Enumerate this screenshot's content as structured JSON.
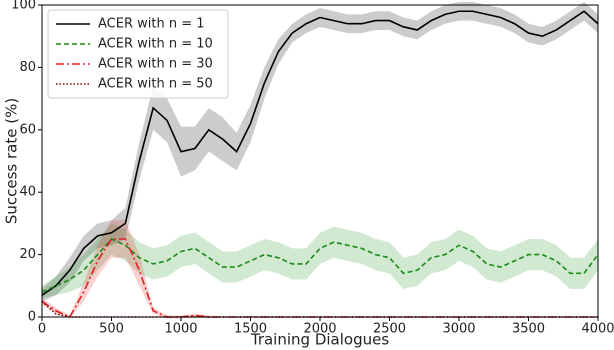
{
  "chart_data": {
    "type": "line",
    "xlabel": "Training Dialogues",
    "ylabel": "Success rate (%)",
    "x": [
      0,
      100,
      200,
      300,
      400,
      500,
      600,
      700,
      800,
      900,
      1000,
      1100,
      1200,
      1300,
      1400,
      1500,
      1600,
      1700,
      1800,
      1900,
      2000,
      2100,
      2200,
      2300,
      2400,
      2500,
      2600,
      2700,
      2800,
      2900,
      3000,
      3100,
      3200,
      3300,
      3400,
      3500,
      3600,
      3700,
      3800,
      3900,
      4000
    ],
    "series": [
      {
        "name": "ACER with n = 1",
        "color": "#000000",
        "dash": "solid",
        "values": [
          7,
          10,
          15,
          22,
          26,
          27,
          30,
          50,
          67,
          63,
          53,
          54,
          60,
          57,
          53,
          62,
          75,
          85,
          91,
          94,
          96,
          95,
          94,
          94,
          95,
          95,
          93,
          92,
          95,
          97,
          98,
          98,
          97,
          96,
          94,
          91,
          90,
          92,
          95,
          98,
          94
        ],
        "errors": [
          2,
          3,
          4,
          4,
          4,
          4,
          5,
          6,
          7,
          7,
          8,
          7,
          7,
          7,
          6,
          6,
          5,
          4,
          3,
          3,
          3,
          3,
          3,
          3,
          3,
          3,
          3,
          3,
          3,
          3,
          3,
          3,
          3,
          3,
          3,
          3,
          3,
          3,
          3,
          3,
          3
        ]
      },
      {
        "name": "ACER with n = 10",
        "color": "#1a8a1a",
        "dash": "dashed",
        "values": [
          8,
          10,
          12,
          15,
          20,
          25,
          23,
          19,
          17,
          18,
          21,
          22,
          19,
          16,
          16,
          18,
          20,
          19,
          17,
          17,
          22,
          24,
          23,
          22,
          20,
          19,
          14,
          15,
          19,
          20,
          23,
          21,
          17,
          16,
          18,
          20,
          20,
          18,
          14,
          14,
          20
        ],
        "errors": [
          2,
          3,
          4,
          5,
          5,
          5,
          5,
          5,
          5,
          5,
          5,
          5,
          5,
          5,
          5,
          5,
          5,
          5,
          5,
          5,
          5,
          5,
          5,
          5,
          5,
          5,
          5,
          5,
          5,
          5,
          5,
          5,
          5,
          5,
          5,
          5,
          5,
          5,
          5,
          5,
          5
        ]
      },
      {
        "name": "ACER with n = 30",
        "color": "#e02020",
        "dash": "dashdot",
        "values": [
          5,
          2,
          0,
          8,
          18,
          25,
          25,
          15,
          2,
          0,
          0,
          0.5,
          0,
          0,
          0,
          0,
          0,
          0,
          0,
          0,
          0,
          0,
          0,
          0,
          0,
          0,
          0,
          0,
          0,
          0,
          0,
          0,
          0,
          0,
          0,
          0,
          0,
          0,
          0,
          0,
          0
        ],
        "errors": [
          1,
          1,
          0.5,
          3,
          5,
          6,
          6,
          5,
          1,
          0.5,
          0.5,
          0.5,
          0.5,
          0,
          0,
          0,
          0,
          0,
          0,
          0,
          0,
          0,
          0,
          0,
          0,
          0,
          0,
          0,
          0,
          0,
          0,
          0,
          0,
          0,
          0,
          0,
          0,
          0,
          0,
          0,
          0
        ]
      },
      {
        "name": "ACER with n = 50",
        "color": "#8b0000",
        "dash": "dotted",
        "values": [
          5,
          1,
          0,
          0,
          0,
          0,
          0,
          0,
          0,
          0,
          0,
          0,
          0,
          0,
          0,
          0,
          0,
          0,
          0,
          0,
          0,
          0,
          0,
          0,
          0,
          0,
          0,
          0,
          0,
          0,
          0,
          0,
          0,
          0,
          0,
          0,
          0,
          0,
          0,
          0,
          0
        ],
        "errors": [
          0,
          0,
          0,
          0,
          0,
          0,
          0,
          0,
          0,
          0,
          0,
          0,
          0,
          0,
          0,
          0,
          0,
          0,
          0,
          0,
          0,
          0,
          0,
          0,
          0,
          0,
          0,
          0,
          0,
          0,
          0,
          0,
          0,
          0,
          0,
          0,
          0,
          0,
          0,
          0,
          0
        ]
      }
    ],
    "xlim": [
      0,
      4000
    ],
    "xticks": [
      0,
      500,
      1000,
      1500,
      2000,
      2500,
      3000,
      3500,
      4000
    ],
    "ylim": [
      0,
      100
    ],
    "yticks": [
      0,
      20,
      40,
      60,
      80,
      100
    ],
    "grid": false,
    "legend": "upper left"
  }
}
